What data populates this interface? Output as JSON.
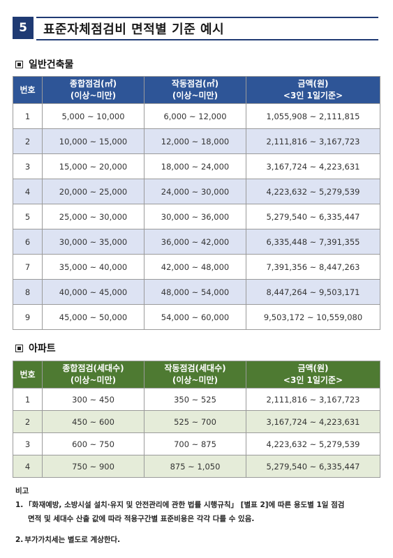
{
  "header": {
    "number": "5",
    "title": "표준자체점검비 면적별 기준 예시"
  },
  "general": {
    "section_title": "일반건축물",
    "headers": {
      "col1": "번호",
      "col2_line1": "종합점검(㎡)",
      "col2_line2": "(이상~미만)",
      "col3_line1": "작동점검(㎡)",
      "col3_line2": "(이상~미만)",
      "col4_line1": "금액(원)",
      "col4_line2": "<3인 1일기준>"
    },
    "rows": [
      {
        "no": "1",
        "comprehensive": "5,000 ~ 10,000",
        "operational": "6,000 ~ 12,000",
        "amount": "1,055,908 ~ 2,111,815"
      },
      {
        "no": "2",
        "comprehensive": "10,000 ~ 15,000",
        "operational": "12,000 ~ 18,000",
        "amount": "2,111,816 ~ 3,167,723"
      },
      {
        "no": "3",
        "comprehensive": "15,000 ~ 20,000",
        "operational": "18,000 ~ 24,000",
        "amount": "3,167,724 ~ 4,223,631"
      },
      {
        "no": "4",
        "comprehensive": "20,000 ~ 25,000",
        "operational": "24,000 ~ 30,000",
        "amount": "4,223,632 ~ 5,279,539"
      },
      {
        "no": "5",
        "comprehensive": "25,000 ~ 30,000",
        "operational": "30,000 ~ 36,000",
        "amount": "5,279,540 ~ 6,335,447"
      },
      {
        "no": "6",
        "comprehensive": "30,000 ~ 35,000",
        "operational": "36,000 ~ 42,000",
        "amount": "6,335,448 ~ 7,391,355"
      },
      {
        "no": "7",
        "comprehensive": "35,000 ~ 40,000",
        "operational": "42,000 ~ 48,000",
        "amount": "7,391,356 ~ 8,447,263"
      },
      {
        "no": "8",
        "comprehensive": "40,000 ~ 45,000",
        "operational": "48,000 ~ 54,000",
        "amount": "8,447,264 ~ 9,503,171"
      },
      {
        "no": "9",
        "comprehensive": "45,000 ~ 50,000",
        "operational": "54,000 ~ 60,000",
        "amount": "9,503,172 ~ 10,559,080"
      }
    ]
  },
  "apartment": {
    "section_title": "아파트",
    "headers": {
      "col1": "번호",
      "col2_line1": "종합점검(세대수)",
      "col2_line2": "(이상~미만)",
      "col3_line1": "작동점검(세대수)",
      "col3_line2": "(이상~미만)",
      "col4_line1": "금액(원)",
      "col4_line2": "<3인 1일기준>"
    },
    "rows": [
      {
        "no": "1",
        "comprehensive": "300 ~ 450",
        "operational": "350 ~ 525",
        "amount": "2,111,816 ~ 3,167,723"
      },
      {
        "no": "2",
        "comprehensive": "450 ~ 600",
        "operational": "525 ~ 700",
        "amount": "3,167,724 ~ 4,223,631"
      },
      {
        "no": "3",
        "comprehensive": "600 ~ 750",
        "operational": "700 ~ 875",
        "amount": "4,223,632 ~ 5,279,539"
      },
      {
        "no": "4",
        "comprehensive": "750 ~ 900",
        "operational": "875 ~ 1,050",
        "amount": "5,279,540 ~ 6,335,447"
      }
    ]
  },
  "notes": {
    "heading": "비고",
    "note1_num": "1.",
    "note1_line1": "「화재예방, 소방시설 설치·유지 및 안전관리에 관한 법률 시행규칙」 [별표 2]에 따른 용도별 1일 점검",
    "note1_line2": "면적 및 세대수 산출 값에 따라 적용구간별 표준비용은 각각 다를 수 있음.",
    "note2_num": "2.",
    "note2_text": "부가가치세는 별도로 계상한다."
  },
  "colors": {
    "header_navy": "#1f3a73",
    "table1_header": "#2e5597",
    "table1_stripe": "#dde3f3",
    "table2_header": "#4e7a32",
    "table2_stripe": "#e5ecd9"
  }
}
